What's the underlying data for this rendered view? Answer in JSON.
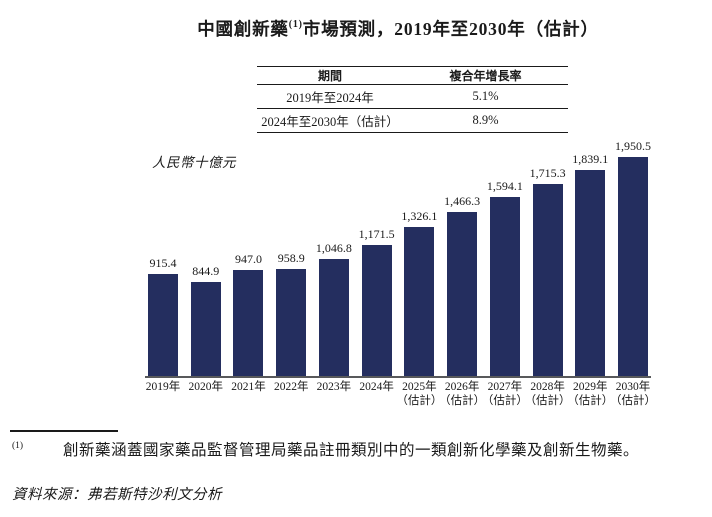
{
  "title": {
    "prefix": "中國創新藥",
    "superscript": "(1)",
    "suffix": "市場預測，2019年至2030年（估計）"
  },
  "cagr_table": {
    "headers": [
      "期間",
      "複合年增長率"
    ],
    "rows": [
      [
        "2019年至2024年",
        "5.1%"
      ],
      [
        "2024年至2030年（估計）",
        "8.9%"
      ]
    ]
  },
  "chart_data": {
    "type": "bar",
    "title": "中國創新藥市場預測，2019年至2030年（估計）",
    "ylabel": "人民幣十億元",
    "xlabel": "",
    "categories": [
      "2019年",
      "2020年",
      "2021年",
      "2022年",
      "2023年",
      "2024年",
      "2025年",
      "2026年",
      "2027年",
      "2028年",
      "2029年",
      "2030年"
    ],
    "category_sublabels": [
      "",
      "",
      "",
      "",
      "",
      "",
      "（估計）",
      "（估計）",
      "（估計）",
      "（估計）",
      "（估計）",
      "（估計）"
    ],
    "values": [
      915.4,
      844.9,
      947.0,
      958.9,
      1046.8,
      1171.5,
      1326.1,
      1466.3,
      1594.1,
      1715.3,
      1839.1,
      1950.5
    ],
    "value_labels": [
      "915.4",
      "844.9",
      "947.0",
      "958.9",
      "1,046.8",
      "1,171.5",
      "1,326.1",
      "1,466.3",
      "1,594.1",
      "1,715.3",
      "1,839.1",
      "1,950.5"
    ],
    "ylim": [
      0,
      1950.5
    ],
    "grid": "off",
    "legend": "none",
    "bar_color": "#242e5f",
    "axis_line_color": "#58595b"
  },
  "footnote": {
    "marker": "(1)",
    "text": "創新藥涵蓋國家藥品監督管理局藥品註冊類別中的一類創新化學藥及創新生物藥。"
  },
  "source": {
    "text": "資料來源：弗若斯特沙利文分析"
  }
}
